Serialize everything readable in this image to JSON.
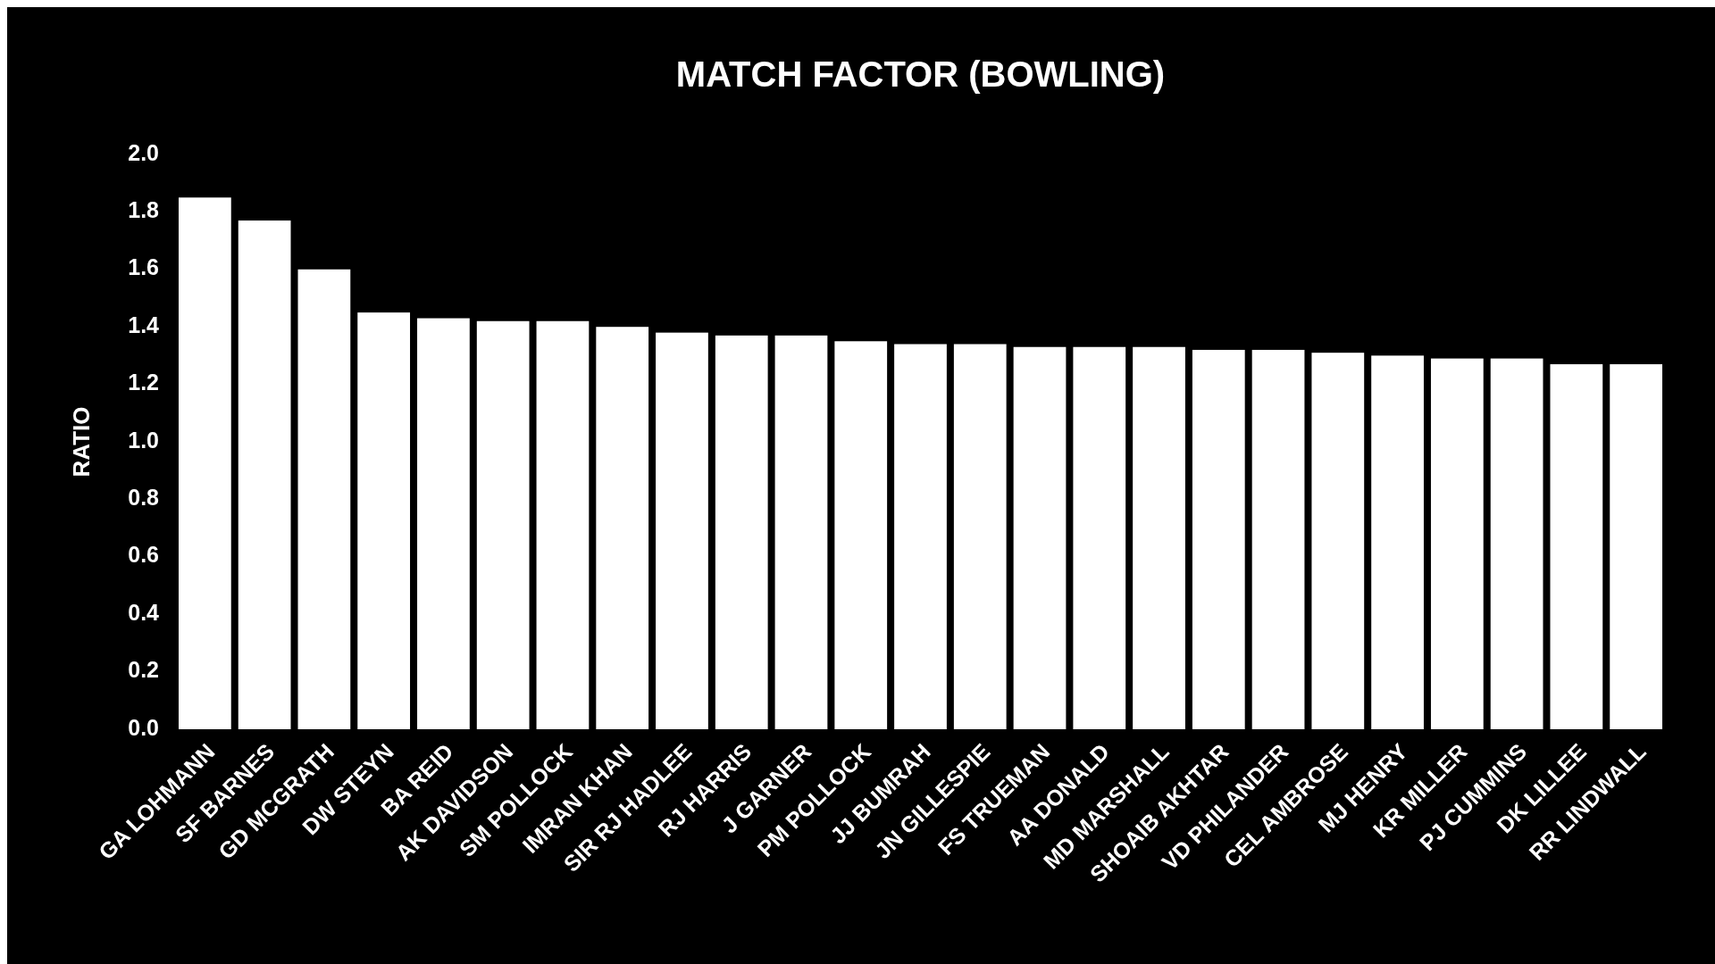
{
  "chart_data": {
    "type": "bar",
    "title": "MATCH FACTOR (BOWLING)",
    "ylabel": "RATIO",
    "categories": [
      "GA LOHMANN",
      "SF BARNES",
      "GD MCGRATH",
      "DW STEYN",
      "BA REID",
      "AK DAVIDSON",
      "SM POLLOCK",
      "IMRAN KHAN",
      "SIR RJ HADLEE",
      "RJ HARRIS",
      "J GARNER",
      "PM POLLOCK",
      "JJ BUMRAH",
      "JN GILLESPIE",
      "FS TRUEMAN",
      "AA DONALD",
      "MD MARSHALL",
      "SHOAIB AKHTAR",
      "VD PHILANDER",
      "CEL AMBROSE",
      "MJ HENRY",
      "KR MILLER",
      "PJ CUMMINS",
      "DK LILLEE",
      "RR LINDWALL"
    ],
    "values": [
      1.85,
      1.77,
      1.6,
      1.45,
      1.43,
      1.42,
      1.42,
      1.4,
      1.38,
      1.37,
      1.37,
      1.35,
      1.34,
      1.34,
      1.33,
      1.33,
      1.33,
      1.32,
      1.32,
      1.31,
      1.3,
      1.29,
      1.29,
      1.27,
      1.27
    ],
    "color": "#ffffff",
    "ylim": [
      0,
      2
    ],
    "yticks": [
      {
        "value": 0,
        "label": "0.0"
      },
      {
        "value": 0.2,
        "label": "0.2"
      },
      {
        "value": 0.4,
        "label": "0.4"
      },
      {
        "value": 0.6,
        "label": "0.6"
      },
      {
        "value": 0.8,
        "label": "0.8"
      },
      {
        "value": 1,
        "label": "1.0"
      },
      {
        "value": 1.2,
        "label": "1.2"
      },
      {
        "value": 1.4,
        "label": "1.4"
      },
      {
        "value": 1.6,
        "label": "1.6"
      },
      {
        "value": 1.8,
        "label": "1.8"
      },
      {
        "value": 2,
        "label": "2.0"
      }
    ]
  }
}
